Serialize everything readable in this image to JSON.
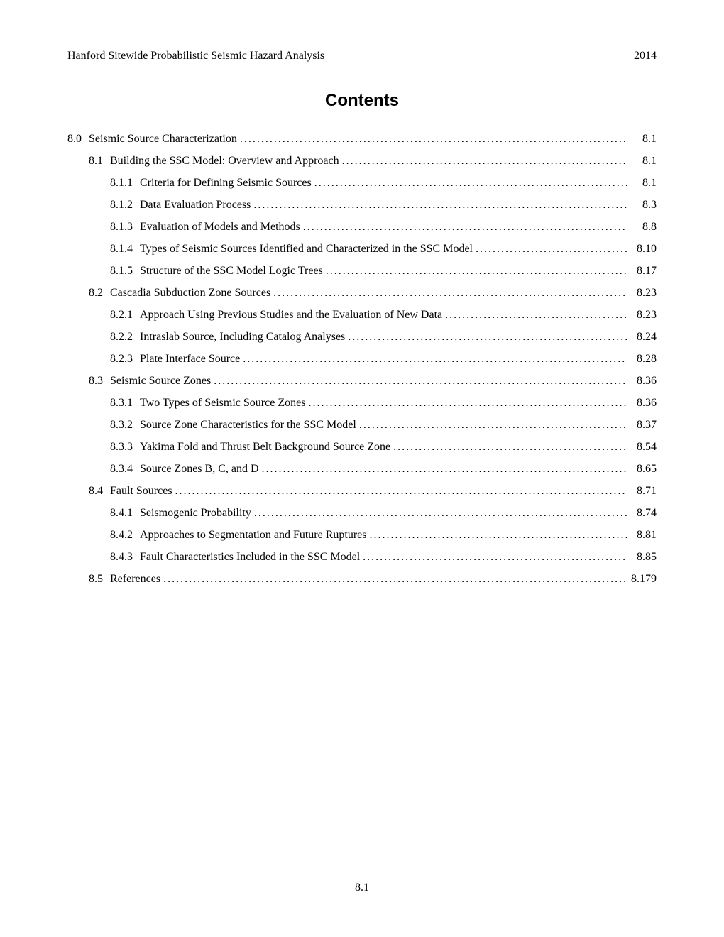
{
  "header": {
    "title": "Hanford Sitewide Probabilistic Seismic Hazard Analysis",
    "year": "2014"
  },
  "contents_heading": "Contents",
  "page_number": "8.1",
  "toc": [
    {
      "level": 1,
      "num": "8.0",
      "title": "Seismic Source Characterization",
      "page": "8.1"
    },
    {
      "level": 2,
      "num": "8.1",
      "title": "Building the SSC Model:  Overview and Approach",
      "page": "8.1"
    },
    {
      "level": 3,
      "num": "8.1.1",
      "title": "Criteria for Defining Seismic Sources",
      "page": "8.1"
    },
    {
      "level": 3,
      "num": "8.1.2",
      "title": "Data Evaluation Process",
      "page": "8.3"
    },
    {
      "level": 3,
      "num": "8.1.3",
      "title": "Evaluation of Models and Methods",
      "page": "8.8"
    },
    {
      "level": 3,
      "num": "8.1.4",
      "title": "Types of Seismic Sources Identified and Characterized in the SSC Model",
      "page": "8.10"
    },
    {
      "level": 3,
      "num": "8.1.5",
      "title": "Structure of the SSC Model Logic Trees",
      "page": "8.17"
    },
    {
      "level": 2,
      "num": "8.2",
      "title": "Cascadia Subduction Zone Sources",
      "page": "8.23"
    },
    {
      "level": 3,
      "num": "8.2.1",
      "title": "Approach Using Previous Studies and the Evaluation of New Data",
      "page": "8.23"
    },
    {
      "level": 3,
      "num": "8.2.2",
      "title": "Intraslab Source, Including Catalog Analyses",
      "page": "8.24"
    },
    {
      "level": 3,
      "num": "8.2.3",
      "title": "Plate Interface Source",
      "page": "8.28"
    },
    {
      "level": 2,
      "num": "8.3",
      "title": "Seismic Source Zones",
      "page": "8.36"
    },
    {
      "level": 3,
      "num": "8.3.1",
      "title": "Two Types of Seismic Source Zones",
      "page": "8.36"
    },
    {
      "level": 3,
      "num": "8.3.2",
      "title": "Source Zone Characteristics for the SSC Model",
      "page": "8.37"
    },
    {
      "level": 3,
      "num": "8.3.3",
      "title": "Yakima Fold and Thrust Belt Background Source Zone",
      "page": "8.54"
    },
    {
      "level": 3,
      "num": "8.3.4",
      "title": "Source Zones B, C, and D",
      "page": "8.65"
    },
    {
      "level": 2,
      "num": "8.4",
      "title": "Fault Sources",
      "page": "8.71"
    },
    {
      "level": 3,
      "num": "8.4.1",
      "title": "Seismogenic Probability",
      "page": "8.74"
    },
    {
      "level": 3,
      "num": "8.4.2",
      "title": "Approaches to Segmentation and Future Ruptures",
      "page": "8.81"
    },
    {
      "level": 3,
      "num": "8.4.3",
      "title": "Fault Characteristics Included in the SSC Model",
      "page": "8.85"
    },
    {
      "level": 2,
      "num": "8.5",
      "title": "References",
      "page": "8.179"
    }
  ],
  "leader_dots": "................................................................................................................................................................................"
}
